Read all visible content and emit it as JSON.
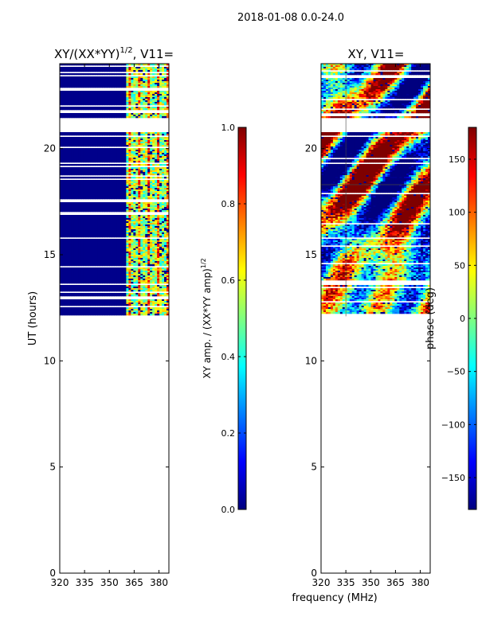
{
  "suptitle": "2018-01-08 0.0-24.0",
  "xlabel": "frequency (MHz)",
  "colors": {
    "jet": [
      "#00007f",
      "#0000ff",
      "#007fff",
      "#00ffff",
      "#7fff7f",
      "#ffff00",
      "#ff7f00",
      "#ff0000",
      "#7f0000"
    ],
    "masked": "#00008b"
  },
  "chart_data": [
    {
      "type": "heatmap",
      "title_prefix": "XY/(XX*YY)",
      "title_sup": "1/2",
      "title_suffix": ", V11=",
      "xlabel": "frequency (MHz)",
      "ylabel": "UT (hours)",
      "xlim": [
        320,
        386
      ],
      "ylim": [
        0,
        24
      ],
      "xticks": [
        320,
        335,
        350,
        365,
        380
      ],
      "yticks": [
        0,
        5,
        10,
        15,
        20
      ],
      "data_t_start": 12.1,
      "gaps_hours": [
        [
          20.85,
          21.45
        ],
        [
          12.95,
          13.05
        ]
      ],
      "colorbar": {
        "label_prefix": "XY amp. / (XX*YY amp)",
        "label_sup": "1/2",
        "range": [
          0,
          1
        ],
        "ticks": [
          0.0,
          0.2,
          0.4,
          0.6,
          0.8,
          1.0
        ],
        "tick_labels": [
          "0.0",
          "0.2",
          "0.4",
          "0.6",
          "0.8",
          "1.0"
        ]
      }
    },
    {
      "type": "heatmap",
      "title_prefix": "XY, V11=",
      "xlabel": "frequency (MHz)",
      "ylabel": "",
      "xlim": [
        320,
        386
      ],
      "ylim": [
        0,
        24
      ],
      "xticks": [
        320,
        335,
        350,
        365,
        380
      ],
      "yticks": [
        0,
        5,
        10,
        15,
        20
      ],
      "data_t_start": 12.1,
      "gaps_hours": [
        [
          20.85,
          21.45
        ]
      ],
      "colorbar": {
        "label_prefix": "phase (deg)",
        "range": [
          -180,
          180
        ],
        "ticks": [
          -150,
          -100,
          -50,
          0,
          50,
          100,
          150
        ],
        "tick_labels": [
          "−150",
          "−100",
          "−50",
          "0",
          "50",
          "100",
          "150"
        ]
      }
    }
  ]
}
